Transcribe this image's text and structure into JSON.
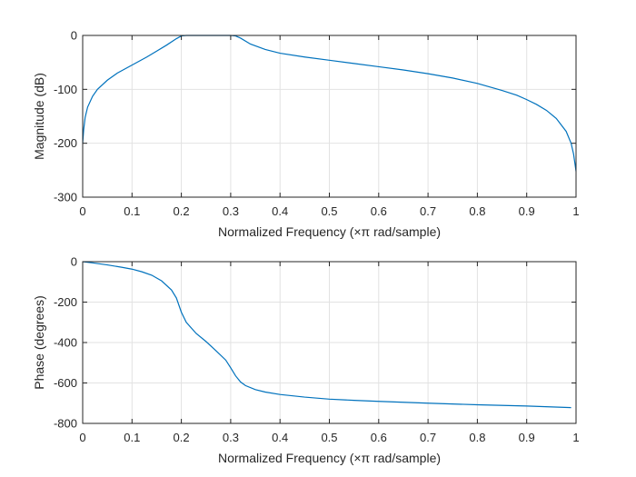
{
  "figure": {
    "background": "#ffffff",
    "line_color": "#0072BD"
  },
  "chart_data": [
    {
      "type": "line",
      "title": "",
      "xlabel": "Normalized Frequency  (×π rad/sample)",
      "ylabel": "Magnitude (dB)",
      "xlim": [
        0,
        1
      ],
      "ylim": [
        -300,
        0
      ],
      "xticks": [
        0,
        0.1,
        0.2,
        0.3,
        0.4,
        0.5,
        0.6,
        0.7,
        0.8,
        0.9,
        1
      ],
      "xtick_labels": [
        "0",
        "0.1",
        "0.2",
        "0.3",
        "0.4",
        "0.5",
        "0.6",
        "0.7",
        "0.8",
        "0.9",
        "1"
      ],
      "yticks": [
        -300,
        -200,
        -100,
        0
      ],
      "ytick_labels": [
        "-300",
        "-200",
        "-100",
        "0"
      ],
      "grid": true,
      "series": [
        {
          "x": [
            0,
            0.002,
            0.005,
            0.01,
            0.02,
            0.03,
            0.05,
            0.07,
            0.1,
            0.13,
            0.15,
            0.17,
            0.19,
            0.2,
            0.21,
            0.25,
            0.3,
            0.31,
            0.32,
            0.34,
            0.37,
            0.4,
            0.45,
            0.5,
            0.55,
            0.6,
            0.65,
            0.7,
            0.75,
            0.8,
            0.85,
            0.88,
            0.9,
            0.92,
            0.94,
            0.96,
            0.98,
            0.99,
            0.995,
            1
          ],
          "values": [
            -200,
            -175,
            -152,
            -133,
            -113,
            -100,
            -83,
            -70,
            -55,
            -40,
            -29,
            -18,
            -6,
            -1,
            0,
            0,
            0,
            -1,
            -5,
            -16,
            -26,
            -33,
            -40,
            -46,
            -52,
            -58,
            -64,
            -71,
            -79,
            -89,
            -102,
            -111,
            -119,
            -128,
            -139,
            -154,
            -178,
            -200,
            -220,
            -252
          ]
        }
      ]
    },
    {
      "type": "line",
      "title": "",
      "xlabel": "Normalized Frequency  (×π rad/sample)",
      "ylabel": "Phase (degrees)",
      "xlim": [
        0,
        1
      ],
      "ylim": [
        -800,
        0
      ],
      "xticks": [
        0,
        0.1,
        0.2,
        0.3,
        0.4,
        0.5,
        0.6,
        0.7,
        0.8,
        0.9,
        1
      ],
      "xtick_labels": [
        "0",
        "0.1",
        "0.2",
        "0.3",
        "0.4",
        "0.5",
        "0.6",
        "0.7",
        "0.8",
        "0.9",
        "1"
      ],
      "yticks": [
        -800,
        -600,
        -400,
        -200,
        0
      ],
      "ytick_labels": [
        "-800",
        "-600",
        "-400",
        "-200",
        "0"
      ],
      "grid": true,
      "series": [
        {
          "x": [
            0,
            0.02,
            0.05,
            0.08,
            0.1,
            0.12,
            0.14,
            0.16,
            0.18,
            0.19,
            0.2,
            0.21,
            0.23,
            0.25,
            0.27,
            0.29,
            0.3,
            0.31,
            0.32,
            0.33,
            0.35,
            0.37,
            0.4,
            0.45,
            0.5,
            0.55,
            0.6,
            0.7,
            0.8,
            0.9,
            0.99
          ],
          "values": [
            0,
            -6,
            -16,
            -28,
            -37,
            -50,
            -67,
            -95,
            -140,
            -180,
            -250,
            -300,
            -355,
            -395,
            -440,
            -487,
            -525,
            -565,
            -595,
            -613,
            -633,
            -645,
            -657,
            -670,
            -680,
            -686,
            -691,
            -700,
            -708,
            -714,
            -722
          ]
        }
      ]
    }
  ]
}
